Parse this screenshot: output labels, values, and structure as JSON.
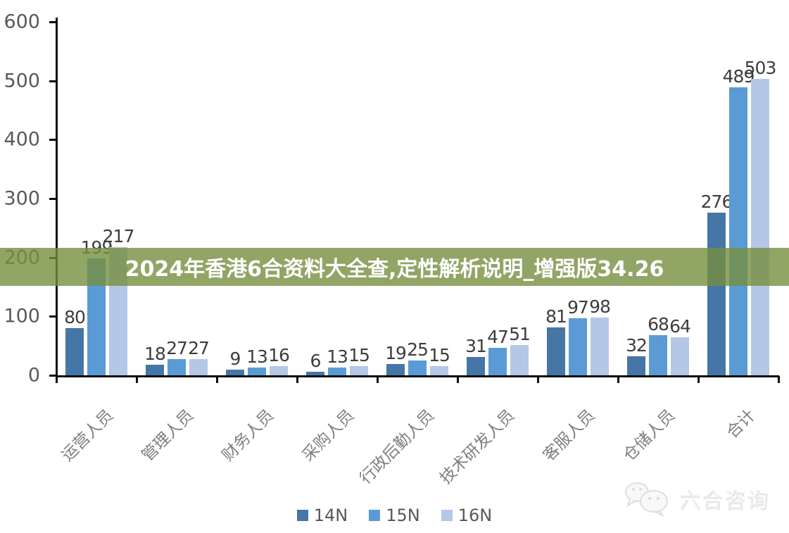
{
  "banner": {
    "text": "2024年香港6合资料大全查,定性解析说明_增强版34.26",
    "bg_color": "#768F3E",
    "bg_rgba": "rgba(118,143,62,0.8)",
    "text_color": "#ffffff"
  },
  "chart_data": {
    "type": "bar",
    "title": "",
    "categories": [
      "运营人员",
      "管理人员",
      "财务人员",
      "采购人员",
      "行政后勤人员",
      "技术研发人员",
      "客服人员",
      "仓储人员",
      "合计"
    ],
    "series": [
      {
        "name": "14N",
        "color": "#4576A6",
        "values": [
          80,
          18,
          9,
          6,
          19,
          31,
          81,
          32,
          276
        ]
      },
      {
        "name": "15N",
        "color": "#5B9BD5",
        "values": [
          199,
          27,
          13,
          13,
          25,
          47,
          97,
          68,
          489
        ]
      },
      {
        "name": "16N",
        "color": "#B4C7E7",
        "values": [
          217,
          27,
          16,
          15,
          15,
          51,
          98,
          64,
          503
        ]
      }
    ],
    "ylim": [
      0,
      600
    ],
    "yticks": [
      0,
      100,
      200,
      300,
      400,
      500,
      600
    ],
    "xlabel": "",
    "ylabel": "",
    "grid": false,
    "legend_position": "bottom",
    "bar_label_color": "#3D3D3D",
    "axis_color": "#0D0D0D",
    "tick_label_color": "#595959",
    "category_label_color": "#7F7F7F"
  },
  "watermark": {
    "text": "六合咨询"
  }
}
